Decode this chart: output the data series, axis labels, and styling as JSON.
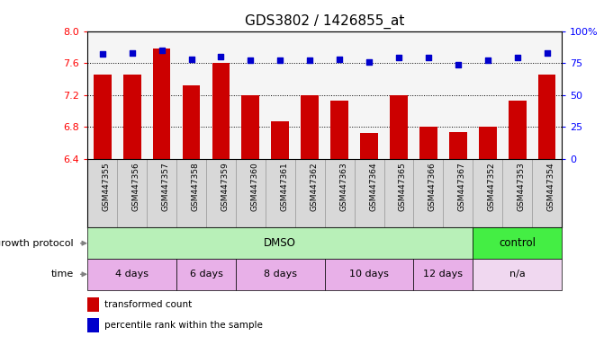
{
  "title": "GDS3802 / 1426855_at",
  "samples": [
    "GSM447355",
    "GSM447356",
    "GSM447357",
    "GSM447358",
    "GSM447359",
    "GSM447360",
    "GSM447361",
    "GSM447362",
    "GSM447363",
    "GSM447364",
    "GSM447365",
    "GSM447366",
    "GSM447367",
    "GSM447352",
    "GSM447353",
    "GSM447354"
  ],
  "bar_values": [
    7.45,
    7.45,
    7.78,
    7.32,
    7.6,
    7.2,
    6.87,
    7.19,
    7.13,
    6.72,
    7.2,
    6.8,
    6.73,
    6.8,
    7.13,
    7.45
  ],
  "blue_values": [
    82,
    83,
    85,
    78,
    80,
    77,
    77,
    77,
    78,
    76,
    79,
    79,
    74,
    77,
    79,
    83
  ],
  "ylim_left": [
    6.4,
    8.0
  ],
  "ylim_right": [
    0,
    100
  ],
  "yticks_left": [
    6.4,
    6.8,
    7.2,
    7.6,
    8.0
  ],
  "yticks_right": [
    0,
    25,
    50,
    75,
    100
  ],
  "ytick_labels_right": [
    "0",
    "25",
    "50",
    "75",
    "100%"
  ],
  "bar_color": "#cc0000",
  "blue_color": "#0000cc",
  "plot_bg": "#f5f5f5",
  "xtick_bg": "#d8d8d8",
  "growth_protocol_label": "growth protocol",
  "time_label": "time",
  "dmso_label": "DMSO",
  "control_label": "control",
  "dmso_color": "#b8f0b8",
  "control_color": "#44ee44",
  "time_dmso_color": "#e8b0e8",
  "time_na_color": "#f0d8f0",
  "time_groups": [
    {
      "label": "4 days",
      "start": 0,
      "end": 2
    },
    {
      "label": "6 days",
      "start": 3,
      "end": 4
    },
    {
      "label": "8 days",
      "start": 5,
      "end": 7
    },
    {
      "label": "10 days",
      "start": 8,
      "end": 10
    },
    {
      "label": "12 days",
      "start": 11,
      "end": 12
    },
    {
      "label": "n/a",
      "start": 13,
      "end": 15
    }
  ],
  "dmso_range": [
    0,
    12
  ],
  "control_range": [
    13,
    15
  ],
  "legend_red": "transformed count",
  "legend_blue": "percentile rank within the sample",
  "title_fontsize": 11,
  "tick_fontsize": 8,
  "label_fontsize": 8
}
